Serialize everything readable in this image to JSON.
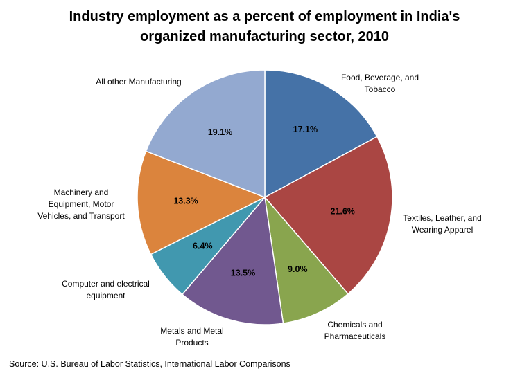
{
  "chart_data": {
    "type": "pie",
    "title_lines": [
      "Industry employment as a percent of employment in India's",
      "organized manufacturing sector, 2010"
    ],
    "slices": [
      {
        "label_lines": [
          "Food, Beverage, and",
          "Tobacco"
        ],
        "value": 17.1,
        "value_label": "17.1%",
        "color": "#4572a7"
      },
      {
        "label_lines": [
          "Textiles, Leather, and",
          "Wearing Apparel"
        ],
        "value": 21.6,
        "value_label": "21.6%",
        "color": "#aa4643"
      },
      {
        "label_lines": [
          "Chemicals and",
          "Pharmaceuticals"
        ],
        "value": 9.0,
        "value_label": "9.0%",
        "color": "#89a54e"
      },
      {
        "label_lines": [
          "Metals and Metal",
          "Products"
        ],
        "value": 13.5,
        "value_label": "13.5%",
        "color": "#71588f"
      },
      {
        "label_lines": [
          "Computer and electrical",
          "equipment"
        ],
        "value": 6.4,
        "value_label": "6.4%",
        "color": "#4198af"
      },
      {
        "label_lines": [
          "Machinery and",
          "Equipment, Motor",
          "Vehicles, and Transport"
        ],
        "value": 13.3,
        "value_label": "13.3%",
        "color": "#db843d"
      },
      {
        "label_lines": [
          "All other Manufacturing"
        ],
        "value": 19.1,
        "value_label": "19.1%",
        "color": "#93a9d0"
      }
    ]
  },
  "source": "Source: U.S. Bureau of Labor Statistics, International Labor Comparisons"
}
